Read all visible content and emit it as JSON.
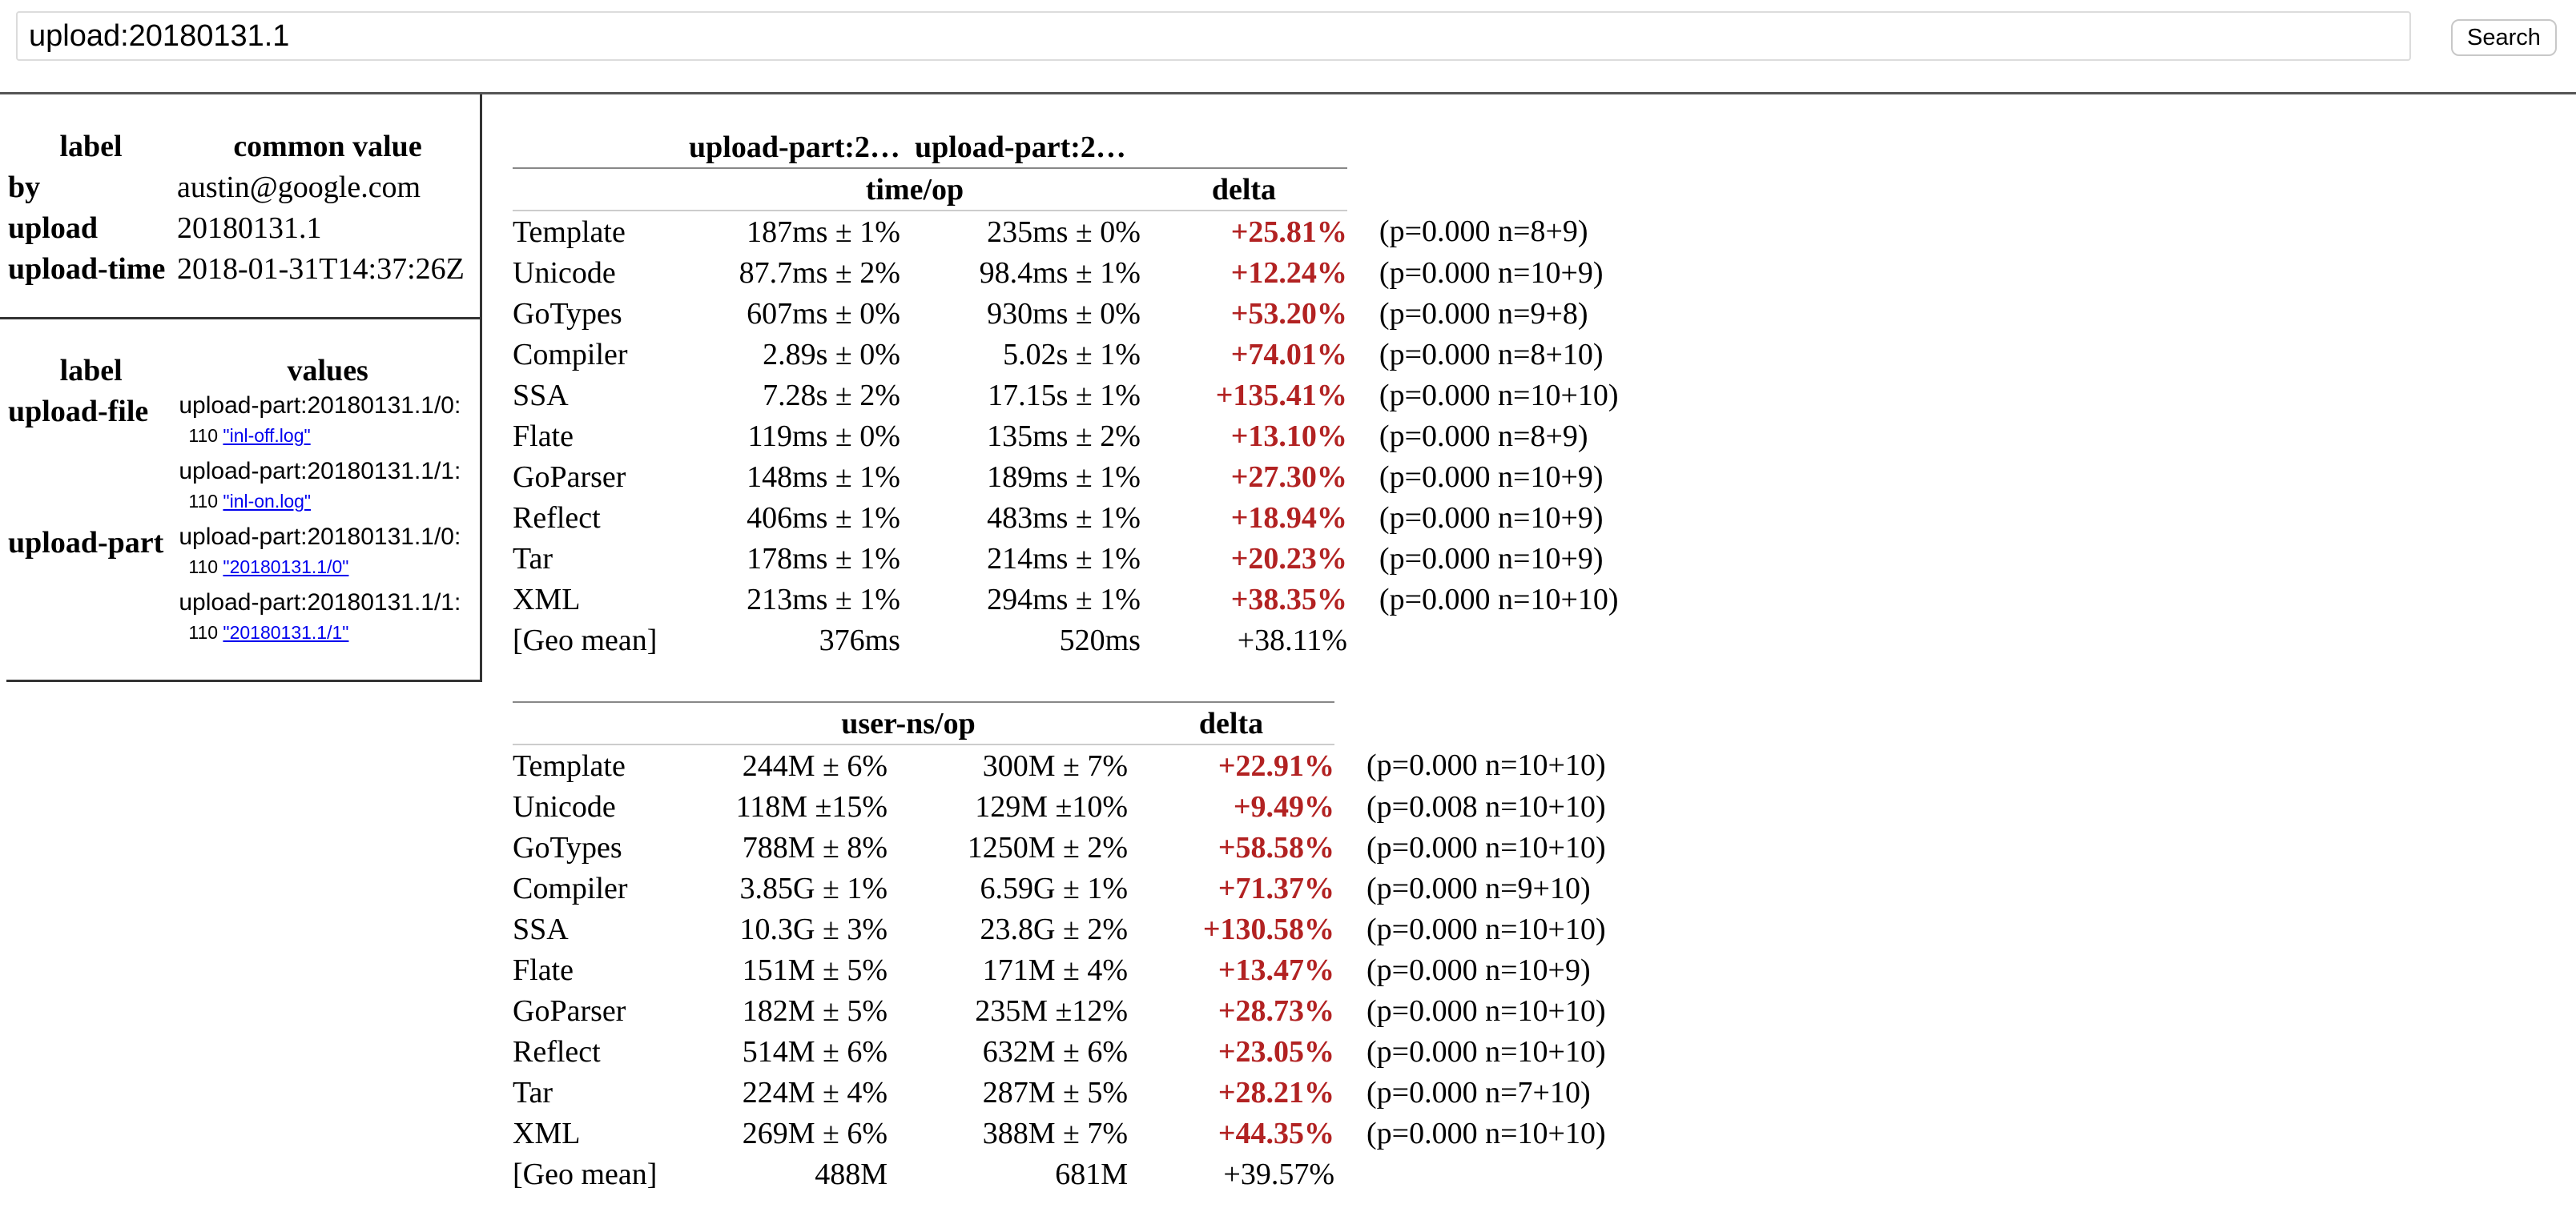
{
  "search": {
    "query": "upload:20180131.1",
    "button_label": "Search"
  },
  "common": {
    "headers": [
      "label",
      "common value"
    ],
    "rows": [
      {
        "label": "by",
        "value": "austin@google.com"
      },
      {
        "label": "upload",
        "value": "20180131.1"
      },
      {
        "label": "upload-time",
        "value": "2018-01-31T14:37:26Z"
      }
    ]
  },
  "values": {
    "headers": [
      "label",
      "values"
    ],
    "groups": [
      {
        "label": "upload-file",
        "items": [
          {
            "key": "upload-part:20180131.1/0:",
            "count": "110",
            "link": "\"inl-off.log\""
          },
          {
            "key": "upload-part:20180131.1/1:",
            "count": "110",
            "link": "\"inl-on.log\""
          }
        ]
      },
      {
        "label": "upload-part",
        "items": [
          {
            "key": "upload-part:20180131.1/0:",
            "count": "110",
            "link": "\"20180131.1/0\""
          },
          {
            "key": "upload-part:20180131.1/1:",
            "count": "110",
            "link": "\"20180131.1/1\""
          }
        ]
      }
    ]
  },
  "columns": {
    "part_a": "upload-part:2…",
    "part_b": "upload-part:2…",
    "delta_header": "delta"
  },
  "time_table": {
    "unit": "time/op",
    "rows": [
      {
        "name": "Template",
        "old": "187ms ± 1%",
        "new": "235ms ± 0%",
        "delta": "+25.81%",
        "note": "(p=0.000 n=8+9)"
      },
      {
        "name": "Unicode",
        "old": "87.7ms ± 2%",
        "new": "98.4ms ± 1%",
        "delta": "+12.24%",
        "note": "(p=0.000 n=10+9)"
      },
      {
        "name": "GoTypes",
        "old": "607ms ± 0%",
        "new": "930ms ± 0%",
        "delta": "+53.20%",
        "note": "(p=0.000 n=9+8)"
      },
      {
        "name": "Compiler",
        "old": "2.89s ± 0%",
        "new": "5.02s ± 1%",
        "delta": "+74.01%",
        "note": "(p=0.000 n=8+10)"
      },
      {
        "name": "SSA",
        "old": "7.28s ± 2%",
        "new": "17.15s ± 1%",
        "delta": "+135.41%",
        "note": "(p=0.000 n=10+10)"
      },
      {
        "name": "Flate",
        "old": "119ms ± 0%",
        "new": "135ms ± 2%",
        "delta": "+13.10%",
        "note": "(p=0.000 n=8+9)"
      },
      {
        "name": "GoParser",
        "old": "148ms ± 1%",
        "new": "189ms ± 1%",
        "delta": "+27.30%",
        "note": "(p=0.000 n=10+9)"
      },
      {
        "name": "Reflect",
        "old": "406ms ± 1%",
        "new": "483ms ± 1%",
        "delta": "+18.94%",
        "note": "(p=0.000 n=10+9)"
      },
      {
        "name": "Tar",
        "old": "178ms ± 1%",
        "new": "214ms ± 1%",
        "delta": "+20.23%",
        "note": "(p=0.000 n=10+9)"
      },
      {
        "name": "XML",
        "old": "213ms ± 1%",
        "new": "294ms ± 1%",
        "delta": "+38.35%",
        "note": "(p=0.000 n=10+10)"
      }
    ],
    "geomean": {
      "name": "[Geo mean]",
      "old": "376ms",
      "new": "520ms",
      "delta": "+38.11%"
    }
  },
  "userns_table": {
    "unit": "user-ns/op",
    "rows": [
      {
        "name": "Template",
        "old": "244M ± 6%",
        "new": "300M ± 7%",
        "delta": "+22.91%",
        "note": "(p=0.000 n=10+10)"
      },
      {
        "name": "Unicode",
        "old": "118M ±15%",
        "new": "129M ±10%",
        "delta": "+9.49%",
        "note": "(p=0.008 n=10+10)"
      },
      {
        "name": "GoTypes",
        "old": "788M ± 8%",
        "new": "1250M ± 2%",
        "delta": "+58.58%",
        "note": "(p=0.000 n=10+10)"
      },
      {
        "name": "Compiler",
        "old": "3.85G ± 1%",
        "new": "6.59G ± 1%",
        "delta": "+71.37%",
        "note": "(p=0.000 n=9+10)"
      },
      {
        "name": "SSA",
        "old": "10.3G ± 3%",
        "new": "23.8G ± 2%",
        "delta": "+130.58%",
        "note": "(p=0.000 n=10+10)"
      },
      {
        "name": "Flate",
        "old": "151M ± 5%",
        "new": "171M ± 4%",
        "delta": "+13.47%",
        "note": "(p=0.000 n=10+9)"
      },
      {
        "name": "GoParser",
        "old": "182M ± 5%",
        "new": "235M ±12%",
        "delta": "+28.73%",
        "note": "(p=0.000 n=10+10)"
      },
      {
        "name": "Reflect",
        "old": "514M ± 6%",
        "new": "632M ± 6%",
        "delta": "+23.05%",
        "note": "(p=0.000 n=10+10)"
      },
      {
        "name": "Tar",
        "old": "224M ± 4%",
        "new": "287M ± 5%",
        "delta": "+28.21%",
        "note": "(p=0.000 n=7+10)"
      },
      {
        "name": "XML",
        "old": "269M ± 6%",
        "new": "388M ± 7%",
        "delta": "+44.35%",
        "note": "(p=0.000 n=10+10)"
      }
    ],
    "geomean": {
      "name": "[Geo mean]",
      "old": "488M",
      "new": "681M",
      "delta": "+39.57%"
    }
  },
  "colors": {
    "regression": "#b22222",
    "link": "#0000ee"
  }
}
